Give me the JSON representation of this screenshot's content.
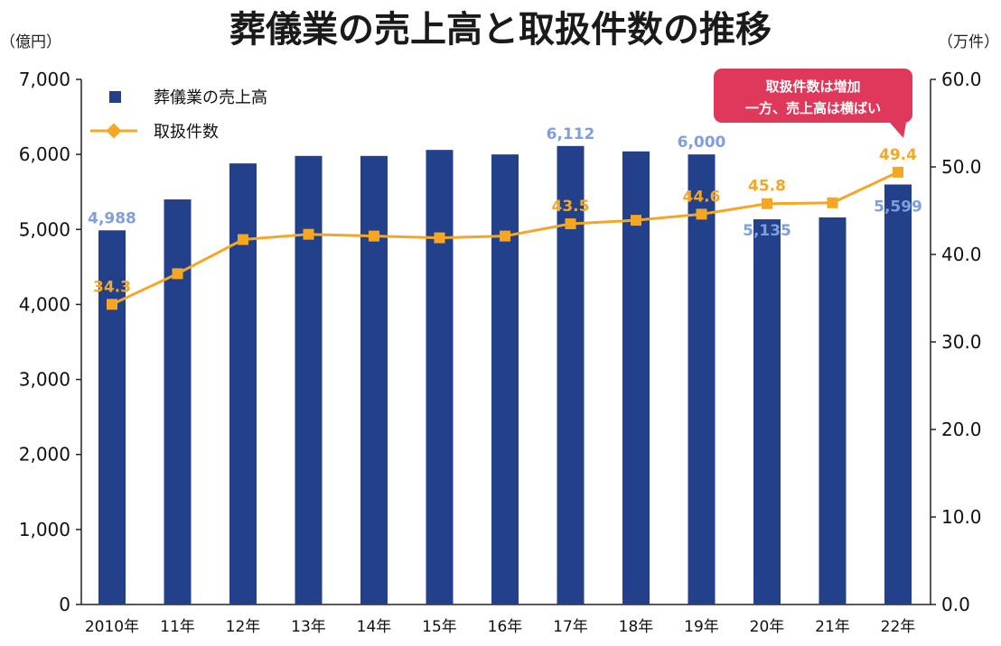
{
  "chart_data": {
    "type": "bar+line",
    "title": "葬儀業の売上高と取扱件数の推移",
    "left_unit": "（億円）",
    "right_unit": "（万件）",
    "categories": [
      "2010年",
      "11年",
      "12年",
      "13年",
      "14年",
      "15年",
      "16年",
      "17年",
      "18年",
      "19年",
      "20年",
      "21年",
      "22年"
    ],
    "left_ticks": [
      "0",
      "1,000",
      "2,000",
      "3,000",
      "4,000",
      "5,000",
      "6,000",
      "7,000"
    ],
    "right_ticks": [
      "0.0",
      "10.0",
      "20.0",
      "30.0",
      "40.0",
      "50.0",
      "60.0"
    ],
    "ylim_left": [
      0,
      7000
    ],
    "ylim_right": [
      0,
      60
    ],
    "series": [
      {
        "name": "葬儀業の売上高",
        "kind": "bar",
        "axis": "left",
        "color": "#22418a",
        "values": [
          4988,
          5400,
          5880,
          5980,
          5980,
          6060,
          6000,
          6112,
          6040,
          6000,
          5135,
          5160,
          5599
        ],
        "labels": [
          "4,988",
          "",
          "",
          "",
          "",
          "",
          "",
          "6,112",
          "",
          "6,000",
          "5,135",
          "",
          "5,599"
        ]
      },
      {
        "name": "取扱件数",
        "kind": "line",
        "axis": "right",
        "color": "#f5a623",
        "values": [
          34.3,
          37.8,
          41.7,
          42.3,
          42.1,
          41.9,
          42.1,
          43.5,
          43.9,
          44.6,
          45.8,
          45.9,
          49.4
        ],
        "labels": [
          "34.3",
          "",
          "",
          "",
          "",
          "",
          "",
          "43.5",
          "",
          "44.6",
          "45.8",
          "",
          "49.4"
        ]
      }
    ],
    "callout": {
      "lines": [
        "取扱件数は増加",
        "一方、売上高は横ばい"
      ],
      "color": "#e0385a"
    },
    "grid": false,
    "legend": "top-left"
  }
}
